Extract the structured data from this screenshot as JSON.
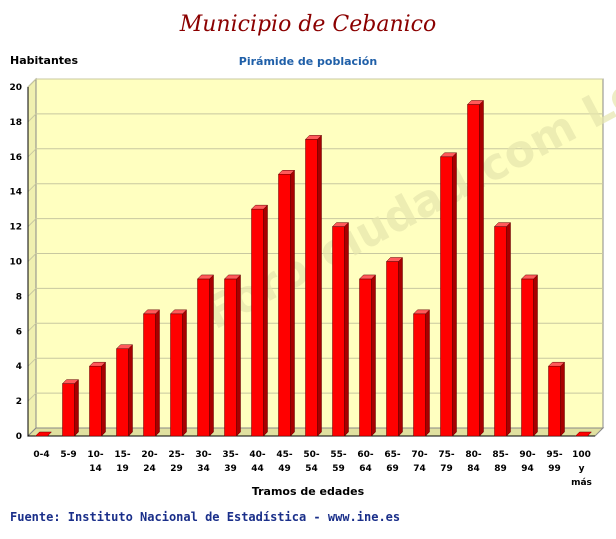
{
  "chart_data": {
    "type": "bar",
    "title": "Municipio de Cebanico",
    "subtitle": "Pirámide de población",
    "ylabel": "Habitantes",
    "xlabel": "Tramos de edades",
    "ylim": [
      0,
      20
    ],
    "yticks": [
      0,
      2,
      4,
      6,
      8,
      10,
      12,
      14,
      16,
      18,
      20
    ],
    "grid": true,
    "categories": [
      "0-4",
      "5-9",
      "10-14",
      "15-19",
      "20-24",
      "25-29",
      "30-34",
      "35-39",
      "40-44",
      "45-49",
      "50-54",
      "55-59",
      "60-64",
      "65-69",
      "70-74",
      "75-79",
      "80-84",
      "85-89",
      "90-94",
      "95-99",
      "100 y más"
    ],
    "category_lines": [
      [
        "0-4"
      ],
      [
        "5-9"
      ],
      [
        "10-",
        "14"
      ],
      [
        "15-",
        "19"
      ],
      [
        "20-",
        "24"
      ],
      [
        "25-",
        "29"
      ],
      [
        "30-",
        "34"
      ],
      [
        "35-",
        "39"
      ],
      [
        "40-",
        "44"
      ],
      [
        "45-",
        "49"
      ],
      [
        "50-",
        "54"
      ],
      [
        "55-",
        "59"
      ],
      [
        "60-",
        "64"
      ],
      [
        "65-",
        "69"
      ],
      [
        "70-",
        "74"
      ],
      [
        "75-",
        "79"
      ],
      [
        "80-",
        "84"
      ],
      [
        "85-",
        "89"
      ],
      [
        "90-",
        "94"
      ],
      [
        "95-",
        "99"
      ],
      [
        "100",
        "y",
        "más"
      ]
    ],
    "values": [
      0,
      3,
      4,
      5,
      7,
      7,
      9,
      9,
      13,
      15,
      17,
      12,
      9,
      10,
      7,
      16,
      19,
      12,
      9,
      4,
      0
    ],
    "colors": {
      "bar": "#ff0000",
      "bar_side": "#a80000",
      "bar_top": "#ff5a5a",
      "plot_bg": "#ffffc0",
      "wall_side": "#f0f0b0",
      "grid": "#c8c8a0"
    }
  },
  "watermark": "Foro-ciudad.com León",
  "source": "Fuente: Instituto Nacional de Estadística - www.ine.es"
}
